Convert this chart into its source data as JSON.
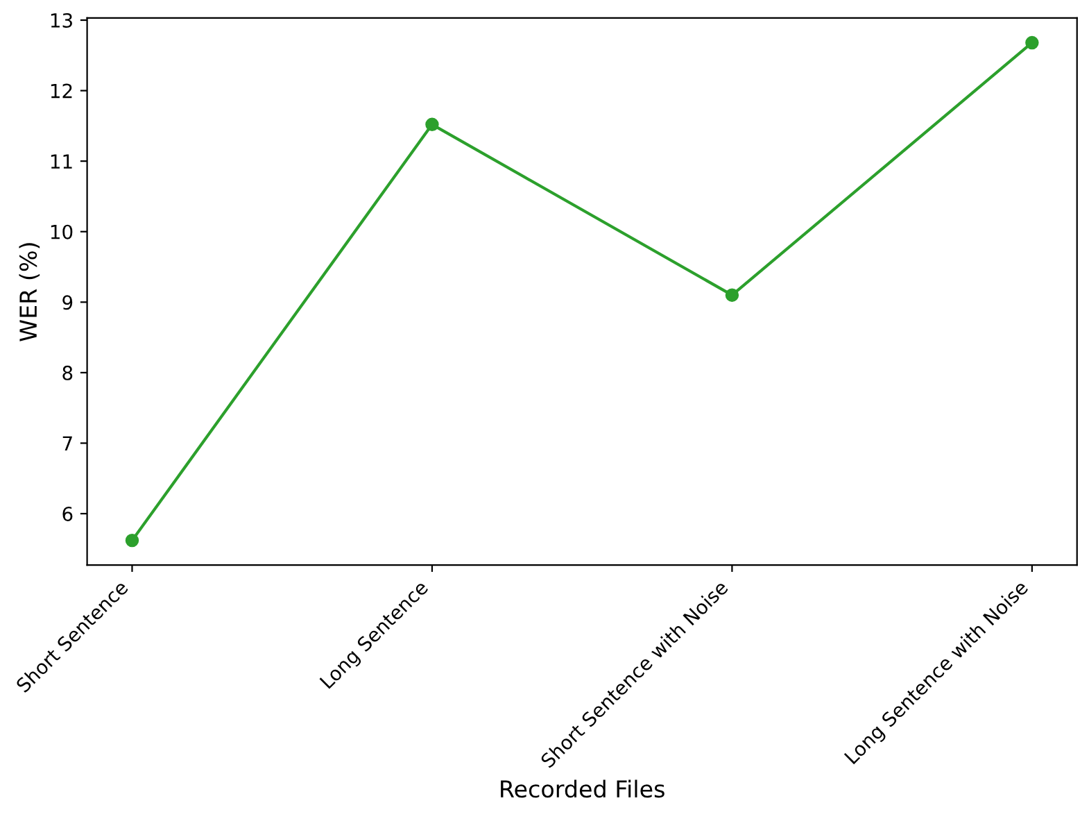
{
  "chart_data": {
    "type": "line",
    "xlabel": "Recorded Files",
    "ylabel": "WER (%)",
    "categories": [
      "Short Sentence",
      "Long Sentence",
      "Short Sentence with Noise",
      "Long Sentence with Noise"
    ],
    "series": [
      {
        "color": "#2ca02c",
        "values": [
          5.62,
          11.52,
          9.1,
          12.68
        ]
      }
    ],
    "ylim": [
      5.27,
      13.03
    ],
    "yticks": [
      6,
      7,
      8,
      9,
      10,
      11,
      12,
      13
    ],
    "marker": "circle",
    "line_style": "solid",
    "grid": false,
    "legend": false
  }
}
